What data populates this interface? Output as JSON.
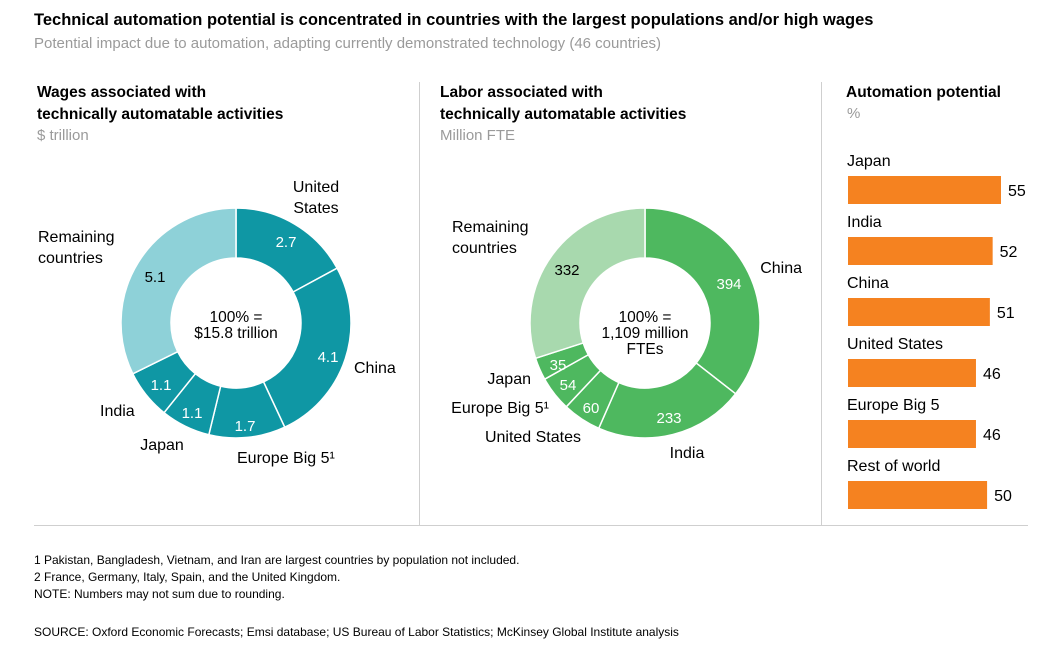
{
  "title": "Technical automation potential is concentrated in countries with the largest populations and/or high wages",
  "subtitle": "Potential impact due to automation, adapting currently demonstrated technology (46 countries)",
  "chart_data": [
    {
      "type": "pie",
      "heading": [
        "Wages associated with",
        "technically automatable activities"
      ],
      "unit": "$ trillion",
      "center": [
        "100% =",
        "$15.8 trillion"
      ],
      "slices": [
        {
          "label": [
            "United",
            "States"
          ],
          "value": 2.7,
          "display": "2.7",
          "color": "#0f97a4"
        },
        {
          "label": [
            "China"
          ],
          "value": 4.1,
          "display": "4.1",
          "color": "#0f97a4"
        },
        {
          "label": [
            "Europe Big 5¹"
          ],
          "value": 1.7,
          "display": "1.7",
          "color": "#0f97a4"
        },
        {
          "label": [
            "Japan"
          ],
          "value": 1.1,
          "display": "1.1",
          "color": "#0f97a4"
        },
        {
          "label": [
            "India"
          ],
          "value": 1.1,
          "display": "1.1",
          "color": "#0f97a4"
        },
        {
          "label": [
            "Remaining",
            "countries"
          ],
          "value": 5.1,
          "display": "5.1",
          "color": "#8ed1d8"
        }
      ]
    },
    {
      "type": "pie",
      "heading": [
        "Labor associated with",
        "technically automatable activities"
      ],
      "unit": "Million FTE",
      "center": [
        "100% =",
        "1,109 million",
        "FTEs"
      ],
      "slices": [
        {
          "label": [
            "China"
          ],
          "value": 394,
          "display": "394",
          "color": "#4eb85f"
        },
        {
          "label": [
            "India"
          ],
          "value": 233,
          "display": "233",
          "color": "#4eb85f"
        },
        {
          "label": [
            "United States"
          ],
          "value": 60,
          "display": "60",
          "color": "#4eb85f"
        },
        {
          "label": [
            "Europe Big 5¹"
          ],
          "value": 54,
          "display": "54",
          "color": "#4eb85f"
        },
        {
          "label": [
            "Japan"
          ],
          "value": 35,
          "display": "35",
          "color": "#4eb85f"
        },
        {
          "label": [
            "Remaining",
            "countries"
          ],
          "value": 332,
          "display": "332",
          "color": "#a8d9ae"
        }
      ]
    },
    {
      "type": "bar",
      "heading": [
        "Automation potential"
      ],
      "unit": "%",
      "categories": [
        "Japan",
        "India",
        "China",
        "United States",
        "Europe Big 5",
        "Rest of world"
      ],
      "values": [
        55,
        52,
        51,
        46,
        46,
        50
      ],
      "color": "#f58220"
    }
  ],
  "footnotes": [
    "1  Pakistan, Bangladesh, Vietnam, and Iran are largest countries by population not included.",
    "2  France, Germany, Italy, Spain, and the United Kingdom.",
    "NOTE: Numbers may not sum due to rounding."
  ],
  "source": "SOURCE:  Oxford Economic Forecasts; Emsi database; US Bureau of Labor Statistics; McKinsey Global Institute analysis"
}
